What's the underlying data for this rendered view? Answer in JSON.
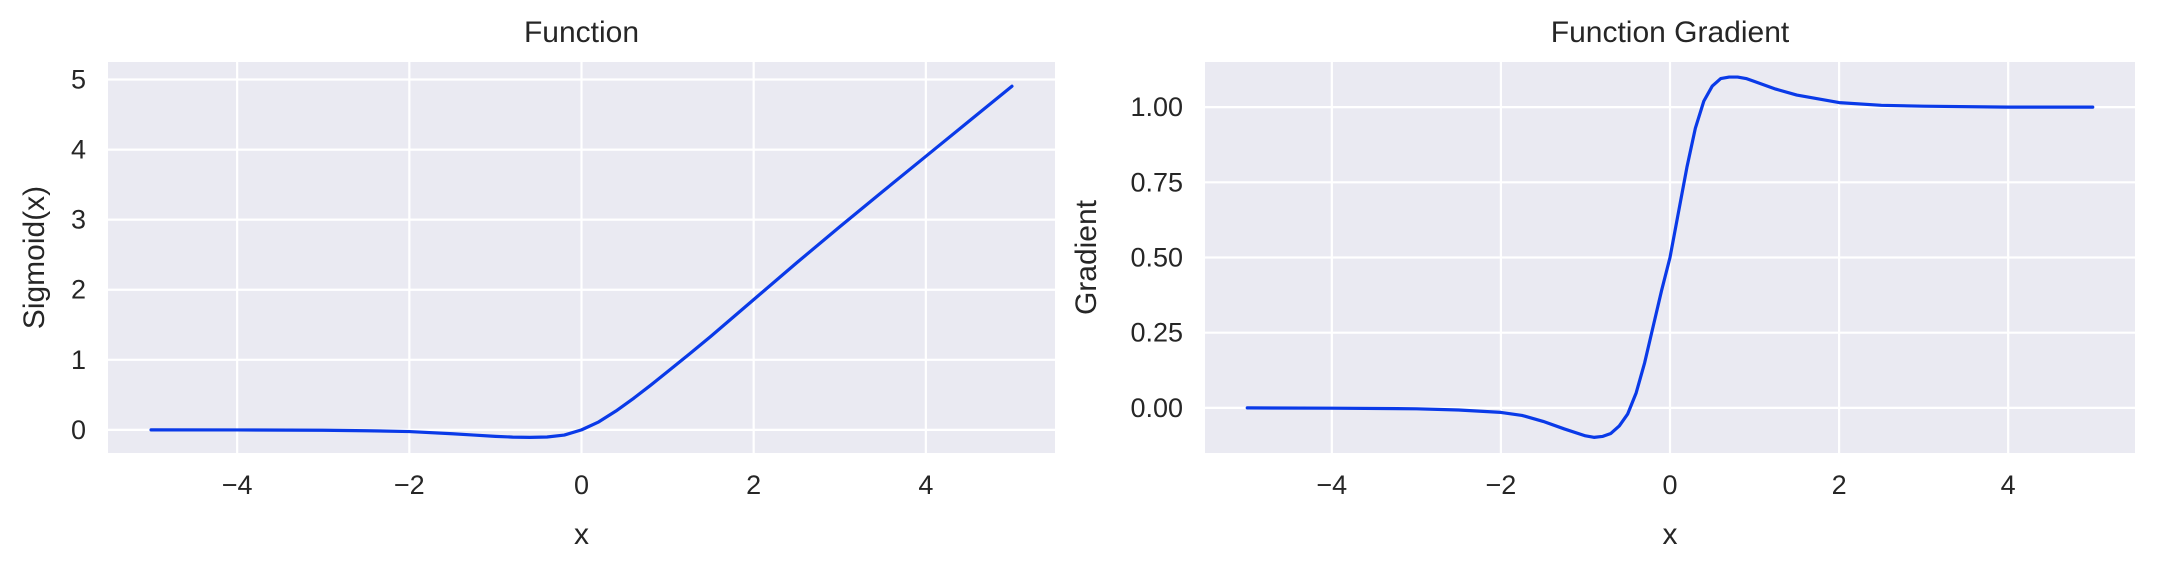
{
  "chart_data": [
    {
      "type": "line",
      "title": "Function",
      "xlabel": "x",
      "ylabel": "Sigmoid(x)",
      "xlim": [
        -5.5,
        5.5
      ],
      "ylim": [
        -0.33,
        5.25
      ],
      "xticks": [
        -4,
        -2,
        0,
        2,
        4
      ],
      "xtick_labels": [
        "−4",
        "−2",
        "0",
        "2",
        "4"
      ],
      "yticks": [
        0,
        1,
        2,
        3,
        4,
        5
      ],
      "ytick_labels": [
        "0",
        "1",
        "2",
        "3",
        "4",
        "5"
      ],
      "grid": true,
      "series": [
        {
          "color": "#0a3ae8",
          "x": [
            -5,
            -4,
            -3,
            -2.5,
            -2,
            -1.5,
            -1.25,
            -1,
            -0.8,
            -0.6,
            -0.4,
            -0.2,
            0,
            0.2,
            0.4,
            0.6,
            0.8,
            1,
            1.25,
            1.5,
            2,
            2.5,
            3,
            3.5,
            4,
            4.5,
            5
          ],
          "y": [
            0.0,
            -0.001,
            -0.005,
            -0.012,
            -0.024,
            -0.055,
            -0.074,
            -0.093,
            -0.103,
            -0.107,
            -0.102,
            -0.074,
            0.0,
            0.114,
            0.269,
            0.445,
            0.634,
            0.831,
            1.079,
            1.333,
            1.859,
            2.385,
            2.899,
            3.404,
            3.904,
            4.404,
            4.904
          ]
        }
      ]
    },
    {
      "type": "line",
      "title": "Function Gradient",
      "xlabel": "x",
      "ylabel": "Gradient",
      "xlim": [
        -5.5,
        5.5
      ],
      "ylim": [
        -0.15,
        1.15
      ],
      "xticks": [
        -4,
        -2,
        0,
        2,
        4
      ],
      "xtick_labels": [
        "−4",
        "−2",
        "0",
        "2",
        "4"
      ],
      "yticks": [
        0,
        0.25,
        0.5,
        0.75,
        1.0
      ],
      "ytick_labels": [
        "0.00",
        "0.25",
        "0.50",
        "0.75",
        "1.00"
      ],
      "grid": true,
      "series": [
        {
          "color": "#0a3ae8",
          "x": [
            -5,
            -4,
            -3,
            -2.5,
            -2,
            -1.75,
            -1.5,
            -1.25,
            -1,
            -0.9,
            -0.8,
            -0.7,
            -0.6,
            -0.5,
            -0.4,
            -0.3,
            -0.2,
            -0.1,
            0,
            0.1,
            0.2,
            0.3,
            0.4,
            0.5,
            0.6,
            0.7,
            0.8,
            0.9,
            1,
            1.25,
            1.5,
            2,
            2.5,
            3,
            4,
            5
          ],
          "y": [
            0.0,
            -0.001,
            -0.003,
            -0.007,
            -0.015,
            -0.025,
            -0.045,
            -0.07,
            -0.093,
            -0.098,
            -0.095,
            -0.085,
            -0.06,
            -0.02,
            0.05,
            0.15,
            0.27,
            0.39,
            0.5,
            0.65,
            0.8,
            0.93,
            1.02,
            1.07,
            1.095,
            1.1,
            1.1,
            1.095,
            1.085,
            1.06,
            1.04,
            1.015,
            1.006,
            1.003,
            1.0,
            1.0
          ]
        }
      ]
    }
  ]
}
